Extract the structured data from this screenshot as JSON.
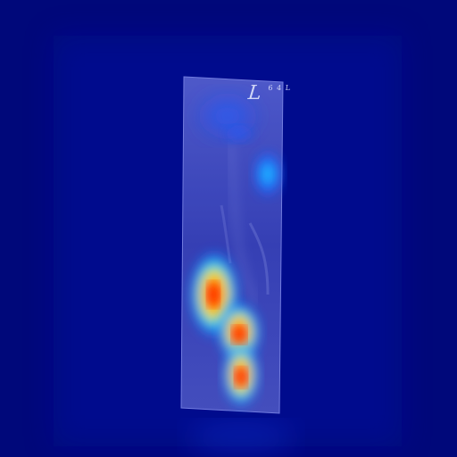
{
  "image": {
    "kind": "x-ray heatmap overlay",
    "colors": {
      "background": "#00087a",
      "panel": "#5a62c8",
      "heat_low": "#1b48ff",
      "heat_mid": "#19d7ff",
      "heat_high": "#ff1a00"
    }
  },
  "marker": {
    "letter": "L",
    "detail": "6 4 L"
  }
}
